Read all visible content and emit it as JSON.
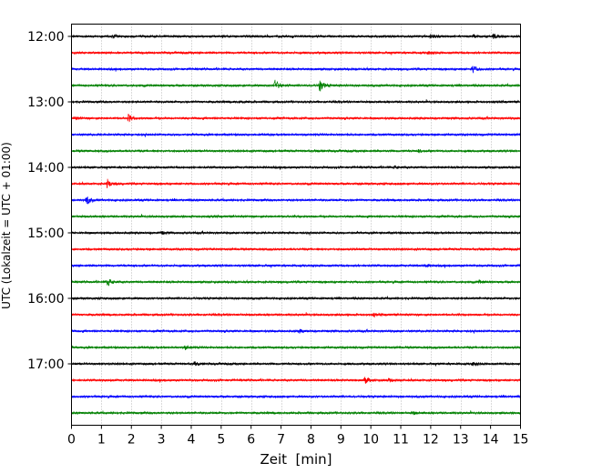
{
  "chart_data": {
    "type": "line",
    "chart_kind": "helicorder (seismogram drum plot)",
    "title": "",
    "xlabel": "Zeit  [min]",
    "ylabel": "UTC (Lokalzeit = UTC + 01:00)",
    "xlim": [
      0,
      15
    ],
    "x_ticks": [
      "0",
      "1",
      "2",
      "3",
      "4",
      "5",
      "6",
      "7",
      "8",
      "9",
      "10",
      "11",
      "12",
      "13",
      "14",
      "15"
    ],
    "y_ticks": [
      "12:00",
      "13:00",
      "14:00",
      "15:00",
      "16:00",
      "17:00"
    ],
    "vertical_grid": "dotted, every 1 min",
    "trace_colors": [
      "#000000",
      "#ff0000",
      "#0000ff",
      "#008000"
    ],
    "traces": [
      {
        "start": "12:00",
        "color": "#000000",
        "events": [
          {
            "t": 1.4,
            "amp": 0.45
          },
          {
            "t": 12.0,
            "amp": 0.5
          },
          {
            "t": 13.4,
            "amp": 0.5
          },
          {
            "t": 14.1,
            "amp": 0.6
          }
        ]
      },
      {
        "start": "12:15",
        "color": "#ff0000",
        "events": [
          {
            "t": 11.9,
            "amp": 0.45
          }
        ]
      },
      {
        "start": "12:30",
        "color": "#0000ff",
        "events": [
          {
            "t": 13.4,
            "amp": 0.9
          }
        ]
      },
      {
        "start": "12:45",
        "color": "#008000",
        "events": [
          {
            "t": 6.8,
            "amp": 1.4
          },
          {
            "t": 8.3,
            "amp": 1.6
          }
        ]
      },
      {
        "start": "13:00",
        "color": "#000000",
        "events": [
          {
            "t": 5.6,
            "amp": 0.3
          }
        ]
      },
      {
        "start": "13:15",
        "color": "#ff0000",
        "events": [
          {
            "t": 1.9,
            "amp": 1.0
          },
          {
            "t": 0.1,
            "amp": 0.35
          }
        ]
      },
      {
        "start": "13:30",
        "color": "#0000ff",
        "events": []
      },
      {
        "start": "13:45",
        "color": "#008000",
        "events": [
          {
            "t": 11.6,
            "amp": 0.3
          }
        ]
      },
      {
        "start": "14:00",
        "color": "#000000",
        "events": [
          {
            "t": 10.8,
            "amp": 0.3
          }
        ]
      },
      {
        "start": "14:15",
        "color": "#ff0000",
        "events": [
          {
            "t": 1.2,
            "amp": 1.1
          }
        ]
      },
      {
        "start": "14:30",
        "color": "#0000ff",
        "events": [
          {
            "t": 0.5,
            "amp": 1.2
          }
        ]
      },
      {
        "start": "14:45",
        "color": "#008000",
        "events": []
      },
      {
        "start": "15:00",
        "color": "#000000",
        "events": [
          {
            "t": 3.0,
            "amp": 0.3
          }
        ]
      },
      {
        "start": "15:15",
        "color": "#ff0000",
        "events": []
      },
      {
        "start": "15:30",
        "color": "#0000ff",
        "events": [
          {
            "t": 11.8,
            "amp": 0.35
          }
        ]
      },
      {
        "start": "15:45",
        "color": "#008000",
        "events": [
          {
            "t": 1.2,
            "amp": 1.0
          },
          {
            "t": 13.6,
            "amp": 0.35
          }
        ]
      },
      {
        "start": "16:00",
        "color": "#000000",
        "events": []
      },
      {
        "start": "16:15",
        "color": "#ff0000",
        "events": [
          {
            "t": 10.1,
            "amp": 0.35
          }
        ]
      },
      {
        "start": "16:30",
        "color": "#0000ff",
        "events": [
          {
            "t": 7.6,
            "amp": 0.4
          }
        ]
      },
      {
        "start": "16:45",
        "color": "#008000",
        "events": [
          {
            "t": 3.8,
            "amp": 0.55
          }
        ]
      },
      {
        "start": "17:00",
        "color": "#000000",
        "events": [
          {
            "t": 4.1,
            "amp": 0.5
          },
          {
            "t": 13.4,
            "amp": 0.5
          }
        ]
      },
      {
        "start": "17:15",
        "color": "#ff0000",
        "events": [
          {
            "t": 9.8,
            "amp": 0.8
          },
          {
            "t": 10.6,
            "amp": 0.4
          }
        ]
      },
      {
        "start": "17:30",
        "color": "#0000ff",
        "events": []
      },
      {
        "start": "17:45",
        "color": "#008000",
        "events": [
          {
            "t": 11.4,
            "amp": 0.3
          }
        ]
      }
    ]
  }
}
